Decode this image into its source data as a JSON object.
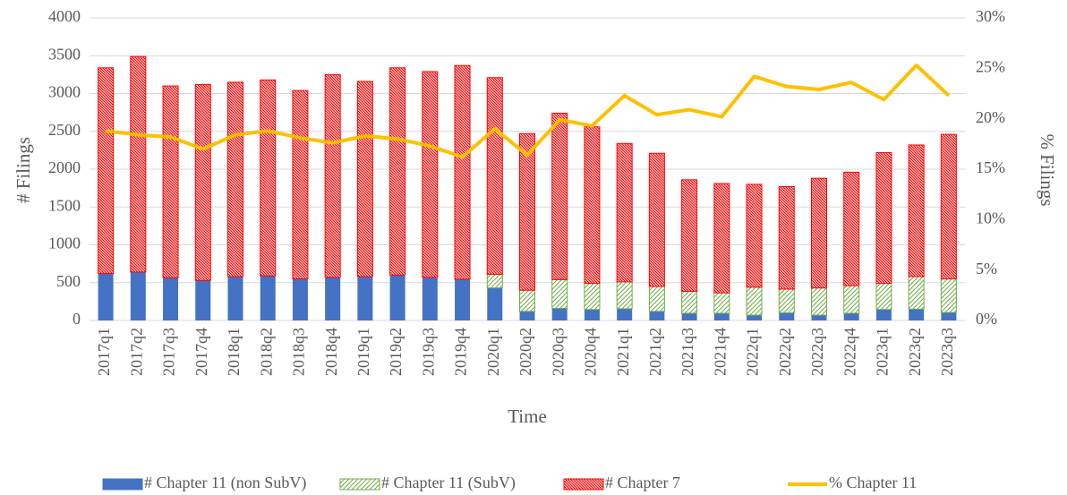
{
  "chart_data": {
    "type": "bar",
    "y_label": "# Filings",
    "y2_label": "% Filings",
    "x_label": "Time",
    "categories": [
      "2017q1",
      "2017q2",
      "2017q3",
      "2017q4",
      "2018q1",
      "2018q2",
      "2018q3",
      "2018q4",
      "2019q1",
      "2019q2",
      "2019q3",
      "2019q4",
      "2020q1",
      "2020q2",
      "2020q3",
      "2020q4",
      "2021q1",
      "2021q2",
      "2021q3",
      "2021q4",
      "2022q1",
      "2022q2",
      "2022q3",
      "2022q4",
      "2023q1",
      "2023q2",
      "2023q3"
    ],
    "series": [
      {
        "name": "# Chapter 11 (non SubV)",
        "type": "bar",
        "color": "#4472c4",
        "fill": "solid",
        "values": [
          620,
          640,
          565,
          530,
          580,
          590,
          550,
          570,
          580,
          600,
          570,
          545,
          430,
          120,
          160,
          145,
          155,
          120,
          95,
          95,
          70,
          100,
          70,
          95,
          145,
          150,
          105
        ]
      },
      {
        "name": "# Chapter 11 (SubV)",
        "type": "bar",
        "color": "#70ad47",
        "fill": "hatch",
        "values": [
          0,
          0,
          0,
          0,
          0,
          0,
          0,
          0,
          0,
          0,
          0,
          0,
          180,
          280,
          380,
          345,
          355,
          330,
          290,
          270,
          370,
          315,
          360,
          365,
          345,
          430,
          445
        ]
      },
      {
        "name": "# Chapter 7",
        "type": "bar",
        "color": "#ff0000",
        "fill": "hatch",
        "values": [
          2720,
          2850,
          2535,
          2590,
          2570,
          2590,
          2490,
          2680,
          2580,
          2740,
          2720,
          2825,
          2600,
          2070,
          2200,
          2070,
          1830,
          1760,
          1475,
          1445,
          1360,
          1355,
          1450,
          1500,
          1730,
          1740,
          1910
        ]
      },
      {
        "name": "% Chapter 11",
        "type": "line",
        "axis": "y2",
        "color": "#ffc000",
        "values": [
          18.8,
          18.4,
          18.2,
          17.0,
          18.4,
          18.8,
          18.1,
          17.6,
          18.3,
          18.0,
          17.3,
          16.2,
          19.0,
          16.4,
          19.9,
          19.3,
          22.3,
          20.4,
          20.9,
          20.2,
          24.2,
          23.2,
          22.9,
          23.6,
          21.9,
          25.3,
          22.3
        ]
      }
    ],
    "ylim": [
      0,
      4000
    ],
    "yticks": [
      0,
      500,
      1000,
      1500,
      2000,
      2500,
      3000,
      3500,
      4000
    ],
    "y2lim": [
      0,
      30
    ],
    "y2ticks": [
      {
        "value": 0,
        "label": "0%"
      },
      {
        "value": 5,
        "label": "5%"
      },
      {
        "value": 10,
        "label": "10%"
      },
      {
        "value": 15,
        "label": "15%"
      },
      {
        "value": 20,
        "label": "20%"
      },
      {
        "value": 25,
        "label": "25%"
      },
      {
        "value": 30,
        "label": "30%"
      }
    ],
    "grid": true,
    "legend": "bottom",
    "stacked": true
  }
}
